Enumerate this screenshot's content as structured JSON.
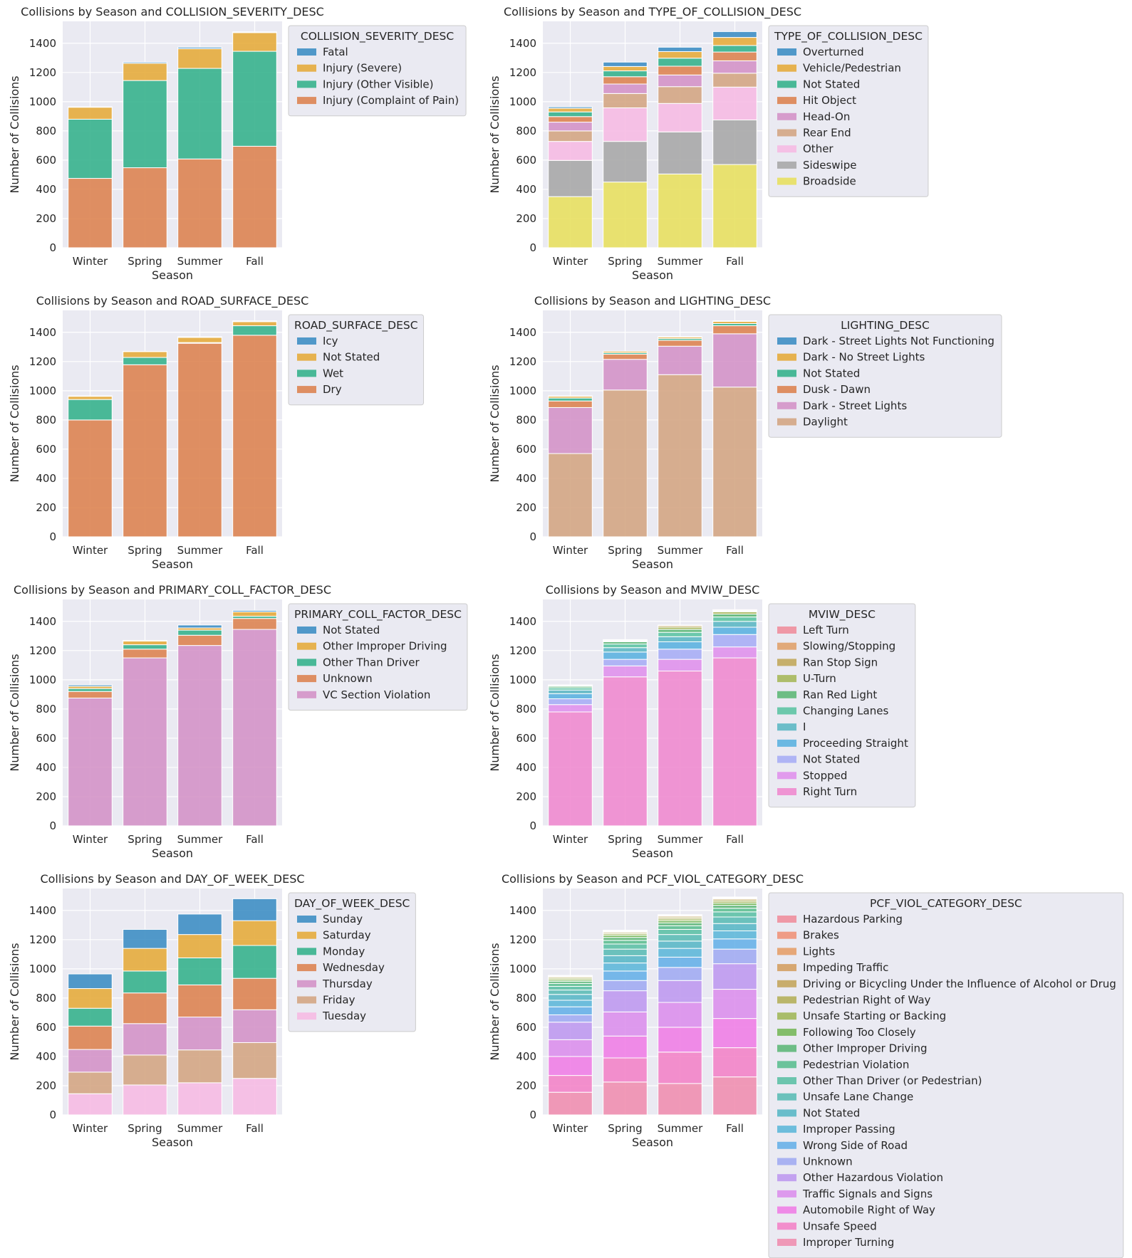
{
  "chart_data": [
    {
      "type": "bar",
      "title": "Collisions by Season and COLLISION_SEVERITY_DESC",
      "xlabel": "Season",
      "ylabel": "Number of Collisions",
      "ylim": [
        0,
        1550
      ],
      "yticks": [
        0,
        200,
        400,
        600,
        800,
        1000,
        1200,
        1400
      ],
      "categories": [
        "Winter",
        "Spring",
        "Summer",
        "Fall"
      ],
      "legend_title": "COLLISION_SEVERITY_DESC",
      "series": [
        {
          "name": "Injury (Complaint of Pain)",
          "color": "#dd8452",
          "values": [
            475,
            548,
            608,
            695
          ]
        },
        {
          "name": "Injury (Other Visible)",
          "color": "#37b28d",
          "values": [
            405,
            597,
            620,
            650
          ]
        },
        {
          "name": "Injury (Severe)",
          "color": "#e5ac3d",
          "values": [
            82,
            118,
            135,
            128
          ]
        },
        {
          "name": "Fatal",
          "color": "#3f8fc4",
          "values": [
            3,
            8,
            10,
            5
          ]
        }
      ]
    },
    {
      "type": "bar",
      "title": "Collisions by Season and TYPE_OF_COLLISION_DESC",
      "xlabel": "Season",
      "ylabel": "Number of Collisions",
      "ylim": [
        0,
        1550
      ],
      "yticks": [
        0,
        200,
        400,
        600,
        800,
        1000,
        1200,
        1400
      ],
      "categories": [
        "Winter",
        "Spring",
        "Summer",
        "Fall"
      ],
      "legend_title": "TYPE_OF_COLLISION_DESC",
      "series": [
        {
          "name": "Broadside",
          "color": "#e8e061",
          "values": [
            350,
            450,
            505,
            570
          ]
        },
        {
          "name": "Sideswipe",
          "color": "#a8a8a8",
          "values": [
            248,
            278,
            288,
            305
          ]
        },
        {
          "name": "Other",
          "color": "#f6bbe3",
          "values": [
            130,
            230,
            195,
            225
          ]
        },
        {
          "name": "Rear End",
          "color": "#d4a684",
          "values": [
            72,
            98,
            115,
            95
          ]
        },
        {
          "name": "Head-On",
          "color": "#d494c8",
          "values": [
            60,
            65,
            80,
            85
          ]
        },
        {
          "name": "Hit Object",
          "color": "#dd8452",
          "values": [
            38,
            50,
            60,
            60
          ]
        },
        {
          "name": "Not Stated",
          "color": "#37b28d",
          "values": [
            32,
            40,
            55,
            45
          ]
        },
        {
          "name": "Vehicle/Pedestrian",
          "color": "#e5ac3d",
          "values": [
            25,
            30,
            45,
            55
          ]
        },
        {
          "name": "Overturned",
          "color": "#3f8fc4",
          "values": [
            10,
            30,
            30,
            40
          ]
        }
      ]
    },
    {
      "type": "bar",
      "title": "Collisions by Season and ROAD_SURFACE_DESC",
      "xlabel": "Season",
      "ylabel": "Number of Collisions",
      "ylim": [
        0,
        1550
      ],
      "yticks": [
        0,
        200,
        400,
        600,
        800,
        1000,
        1200,
        1400
      ],
      "categories": [
        "Winter",
        "Spring",
        "Summer",
        "Fall"
      ],
      "legend_title": "ROAD_SURFACE_DESC",
      "series": [
        {
          "name": "Dry",
          "color": "#dd8452",
          "values": [
            800,
            1178,
            1325,
            1380
          ]
        },
        {
          "name": "Wet",
          "color": "#37b28d",
          "values": [
            140,
            50,
            5,
            65
          ]
        },
        {
          "name": "Not Stated",
          "color": "#e5ac3d",
          "values": [
            22,
            40,
            35,
            28
          ]
        },
        {
          "name": "Icy",
          "color": "#3f8fc4",
          "values": [
            3,
            2,
            5,
            5
          ]
        }
      ]
    },
    {
      "type": "bar",
      "title": "Collisions by Season and LIGHTING_DESC",
      "xlabel": "Season",
      "ylabel": "Number of Collisions",
      "ylim": [
        0,
        1550
      ],
      "yticks": [
        0,
        200,
        400,
        600,
        800,
        1000,
        1200,
        1400
      ],
      "categories": [
        "Winter",
        "Spring",
        "Summer",
        "Fall"
      ],
      "legend_title": "LIGHTING_DESC",
      "series": [
        {
          "name": "Daylight",
          "color": "#d4a684",
          "values": [
            570,
            1005,
            1110,
            1025
          ]
        },
        {
          "name": "Dark - Street Lights",
          "color": "#d494c8",
          "values": [
            315,
            210,
            195,
            365
          ]
        },
        {
          "name": "Dusk - Dawn",
          "color": "#dd8452",
          "values": [
            45,
            35,
            40,
            55
          ]
        },
        {
          "name": "Not Stated",
          "color": "#37b28d",
          "values": [
            20,
            10,
            12,
            15
          ]
        },
        {
          "name": "Dark - No Street Lights",
          "color": "#e5ac3d",
          "values": [
            12,
            10,
            10,
            15
          ]
        },
        {
          "name": "Dark - Street Lights Not Functioning",
          "color": "#3f8fc4",
          "values": [
            3,
            0,
            3,
            3
          ]
        }
      ]
    },
    {
      "type": "bar",
      "title": "Collisions by Season and PRIMARY_COLL_FACTOR_DESC",
      "xlabel": "Season",
      "ylabel": "Number of Collisions",
      "ylim": [
        0,
        1550
      ],
      "yticks": [
        0,
        200,
        400,
        600,
        800,
        1000,
        1200,
        1400
      ],
      "categories": [
        "Winter",
        "Spring",
        "Summer",
        "Fall"
      ],
      "legend_title": "PRIMARY_COLL_FACTOR_DESC",
      "series": [
        {
          "name": "VC Section Violation",
          "color": "#d494c8",
          "values": [
            875,
            1150,
            1235,
            1345
          ]
        },
        {
          "name": "Unknown",
          "color": "#dd8452",
          "values": [
            45,
            60,
            70,
            75
          ]
        },
        {
          "name": "Other Than Driver",
          "color": "#37b28d",
          "values": [
            20,
            30,
            35,
            15
          ]
        },
        {
          "name": "Other Improper Driving",
          "color": "#e5ac3d",
          "values": [
            15,
            25,
            15,
            30
          ]
        },
        {
          "name": "Not Stated",
          "color": "#3f8fc4",
          "values": [
            10,
            5,
            20,
            10
          ]
        }
      ]
    },
    {
      "type": "bar",
      "title": "Collisions by Season and MVIW_DESC",
      "xlabel": "Season",
      "ylabel": "Number of Collisions",
      "ylim": [
        0,
        1550
      ],
      "yticks": [
        0,
        200,
        400,
        600,
        800,
        1000,
        1200,
        1400
      ],
      "categories": [
        "Winter",
        "Spring",
        "Summer",
        "Fall"
      ],
      "legend_title": "MVIW_DESC",
      "series": [
        {
          "name": "Right Turn",
          "color": "#f08bcf",
          "values": [
            780,
            1020,
            1060,
            1150
          ]
        },
        {
          "name": "Stopped",
          "color": "#e092ec",
          "values": [
            50,
            75,
            80,
            75
          ]
        },
        {
          "name": "Not Stated",
          "color": "#a8aef5",
          "values": [
            40,
            45,
            70,
            85
          ]
        },
        {
          "name": "Proceeding Straight",
          "color": "#5db3e0",
          "values": [
            35,
            50,
            50,
            50
          ]
        },
        {
          "name": "I",
          "color": "#5eb8c4",
          "values": [
            25,
            30,
            35,
            40
          ]
        },
        {
          "name": "Changing Lanes",
          "color": "#5ec4a4",
          "values": [
            15,
            25,
            30,
            30
          ]
        },
        {
          "name": "Ran Red Light",
          "color": "#5fb878",
          "values": [
            10,
            15,
            20,
            20
          ]
        },
        {
          "name": "U-Turn",
          "color": "#a7b85b",
          "values": [
            5,
            5,
            15,
            15
          ]
        },
        {
          "name": "Ran Stop Sign",
          "color": "#c2a85c",
          "values": [
            3,
            5,
            10,
            5
          ]
        },
        {
          "name": "Slowing/Stopping",
          "color": "#e0a26d",
          "values": [
            2,
            3,
            3,
            5
          ]
        },
        {
          "name": "Left Turn",
          "color": "#f08f9d",
          "values": [
            0,
            2,
            2,
            5
          ]
        }
      ]
    },
    {
      "type": "bar",
      "title": "Collisions by Season and DAY_OF_WEEK_DESC",
      "xlabel": "Season",
      "ylabel": "Number of Collisions",
      "ylim": [
        0,
        1550
      ],
      "yticks": [
        0,
        200,
        400,
        600,
        800,
        1000,
        1200,
        1400
      ],
      "categories": [
        "Winter",
        "Spring",
        "Summer",
        "Fall"
      ],
      "legend_title": "DAY_OF_WEEK_DESC",
      "series": [
        {
          "name": "Tuesday",
          "color": "#f6bbe3",
          "values": [
            145,
            205,
            220,
            250
          ]
        },
        {
          "name": "Friday",
          "color": "#d4a684",
          "values": [
            148,
            205,
            225,
            245
          ]
        },
        {
          "name": "Thursday",
          "color": "#d494c8",
          "values": [
            155,
            215,
            225,
            225
          ]
        },
        {
          "name": "Wednesday",
          "color": "#dd8452",
          "values": [
            160,
            210,
            220,
            215
          ]
        },
        {
          "name": "Monday",
          "color": "#37b28d",
          "values": [
            122,
            150,
            185,
            225
          ]
        },
        {
          "name": "Saturday",
          "color": "#e5ac3d",
          "values": [
            135,
            155,
            160,
            170
          ]
        },
        {
          "name": "Sunday",
          "color": "#3f8fc4",
          "values": [
            100,
            130,
            140,
            150
          ]
        }
      ]
    },
    {
      "type": "bar",
      "title": "Collisions by Season and PCF_VIOL_CATEGORY_DESC",
      "xlabel": "Season",
      "ylabel": "Number of Collisions",
      "ylim": [
        0,
        1550
      ],
      "yticks": [
        0,
        200,
        400,
        600,
        800,
        1000,
        1200,
        1400
      ],
      "categories": [
        "Winter",
        "Spring",
        "Summer",
        "Fall"
      ],
      "legend_title": "PCF_VIOL_CATEGORY_DESC",
      "series": [
        {
          "name": "Improper Turning",
          "color": "#f08fb0",
          "values": [
            155,
            225,
            215,
            260
          ]
        },
        {
          "name": "Unsafe Speed",
          "color": "#f384c8",
          "values": [
            115,
            165,
            215,
            200
          ]
        },
        {
          "name": "Automobile Right of Way",
          "color": "#f07fe6",
          "values": [
            130,
            150,
            170,
            200
          ]
        },
        {
          "name": "Traffic Signals and Signs",
          "color": "#dc90ec",
          "values": [
            115,
            165,
            170,
            200
          ]
        },
        {
          "name": "Other Hazardous Violation",
          "color": "#bf9af0",
          "values": [
            120,
            145,
            150,
            175
          ]
        },
        {
          "name": "Unknown",
          "color": "#a2acf2",
          "values": [
            50,
            70,
            90,
            100
          ]
        },
        {
          "name": "Wrong Side of Road",
          "color": "#68b1e8",
          "values": [
            55,
            65,
            70,
            70
          ]
        },
        {
          "name": "Improper Passing",
          "color": "#5fb8d9",
          "values": [
            45,
            55,
            60,
            55
          ]
        },
        {
          "name": "Not Stated",
          "color": "#5bb8c6",
          "values": [
            40,
            50,
            50,
            50
          ]
        },
        {
          "name": "Unsafe Lane Change",
          "color": "#5dbdb6",
          "values": [
            30,
            45,
            45,
            45
          ]
        },
        {
          "name": "Other Than Driver (or Pedestrian)",
          "color": "#5ec1a6",
          "values": [
            25,
            35,
            35,
            35
          ]
        },
        {
          "name": "Pedestrian Violation",
          "color": "#5dbf91",
          "values": [
            20,
            25,
            25,
            25
          ]
        },
        {
          "name": "Other Improper Driving",
          "color": "#60b87a",
          "values": [
            15,
            20,
            20,
            20
          ]
        },
        {
          "name": "Following Too Closely",
          "color": "#78b85b",
          "values": [
            10,
            15,
            15,
            15
          ]
        },
        {
          "name": "Unsafe Starting or Backing",
          "color": "#a2b85b",
          "values": [
            10,
            10,
            12,
            12
          ]
        },
        {
          "name": "Pedestrian Right of Way",
          "color": "#b5b05b",
          "values": [
            8,
            8,
            10,
            10
          ]
        },
        {
          "name": "Driving or Bicycling Under the Influence of Alcohol or Drug",
          "color": "#c4a65e",
          "values": [
            6,
            6,
            8,
            8
          ]
        },
        {
          "name": "Impeding Traffic",
          "color": "#d4a063",
          "values": [
            3,
            5,
            5,
            5
          ]
        },
        {
          "name": "Lights",
          "color": "#e6a06a",
          "values": [
            2,
            3,
            3,
            3
          ]
        },
        {
          "name": "Brakes",
          "color": "#f0947a",
          "values": [
            1,
            2,
            2,
            2
          ]
        },
        {
          "name": "Hazardous Parking",
          "color": "#f08f9d",
          "values": [
            0,
            1,
            1,
            2
          ]
        }
      ]
    }
  ]
}
